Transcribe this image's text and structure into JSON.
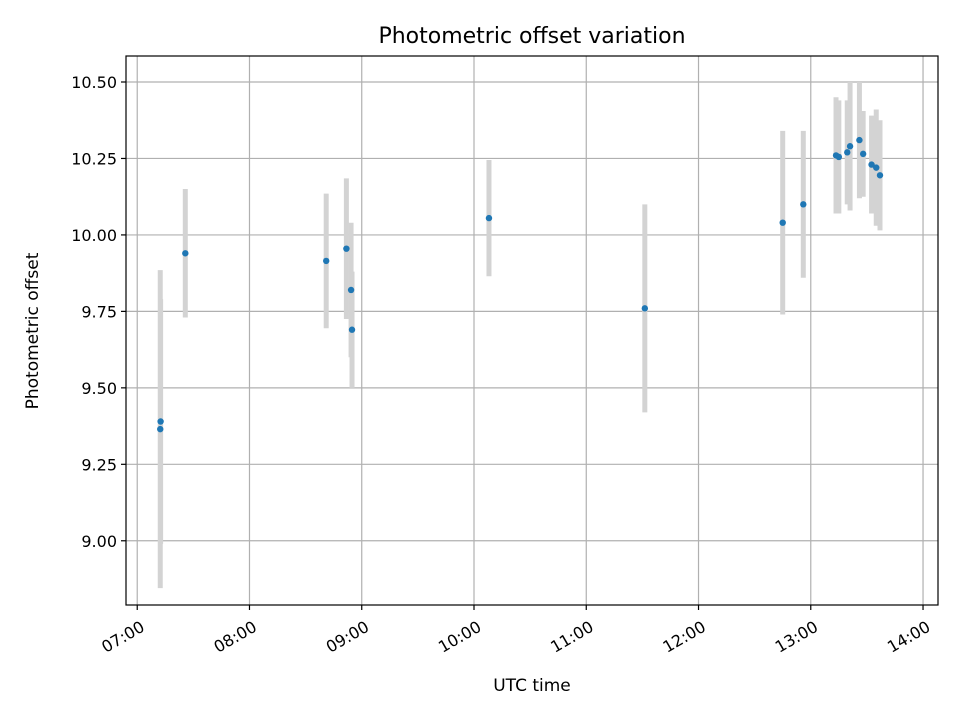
{
  "chart_data": {
    "type": "scatter",
    "title": "Photometric offset variation",
    "xlabel": "UTC time",
    "ylabel": "Photometric offset",
    "x_tick_labels": [
      "07:00",
      "08:00",
      "09:00",
      "10:00",
      "11:00",
      "12:00",
      "13:00",
      "14:00"
    ],
    "x_tick_minutes": [
      420,
      480,
      540,
      600,
      660,
      720,
      780,
      840
    ],
    "y_tick_labels": [
      "9.00",
      "9.25",
      "9.50",
      "9.75",
      "10.00",
      "10.25",
      "10.50"
    ],
    "y_tick_values": [
      9.0,
      9.25,
      9.5,
      9.75,
      10.0,
      10.25,
      10.5
    ],
    "xlim_minutes": [
      414,
      848
    ],
    "ylim": [
      8.79,
      10.585
    ],
    "grid": true,
    "colors": {
      "marker": "#1f77b4",
      "errorbar": "#d3d3d3",
      "grid": "#b0b0b0",
      "axes": "#000000"
    },
    "points": [
      {
        "t": 432.3,
        "y": 9.365,
        "err": 0.52
      },
      {
        "t": 432.5,
        "y": 9.39,
        "err": 0.4
      },
      {
        "t": 445.7,
        "y": 9.94,
        "err": 0.21
      },
      {
        "t": 521.0,
        "y": 9.915,
        "err": 0.22
      },
      {
        "t": 531.8,
        "y": 9.955,
        "err": 0.23
      },
      {
        "t": 534.3,
        "y": 9.82,
        "err": 0.22
      },
      {
        "t": 534.8,
        "y": 9.69,
        "err": 0.19
      },
      {
        "t": 608.0,
        "y": 10.055,
        "err": 0.19
      },
      {
        "t": 691.3,
        "y": 9.76,
        "err": 0.34
      },
      {
        "t": 765.0,
        "y": 10.04,
        "err": 0.3
      },
      {
        "t": 776.0,
        "y": 10.1,
        "err": 0.24
      },
      {
        "t": 793.5,
        "y": 10.26,
        "err": 0.19
      },
      {
        "t": 795.0,
        "y": 10.255,
        "err": 0.185
      },
      {
        "t": 799.5,
        "y": 10.27,
        "err": 0.17
      },
      {
        "t": 801.0,
        "y": 10.29,
        "err": 0.21
      },
      {
        "t": 806.0,
        "y": 10.31,
        "err": 0.19
      },
      {
        "t": 808.0,
        "y": 10.265,
        "err": 0.14
      },
      {
        "t": 812.5,
        "y": 10.23,
        "err": 0.16
      },
      {
        "t": 815.0,
        "y": 10.22,
        "err": 0.19
      },
      {
        "t": 817.0,
        "y": 10.195,
        "err": 0.18
      }
    ]
  }
}
